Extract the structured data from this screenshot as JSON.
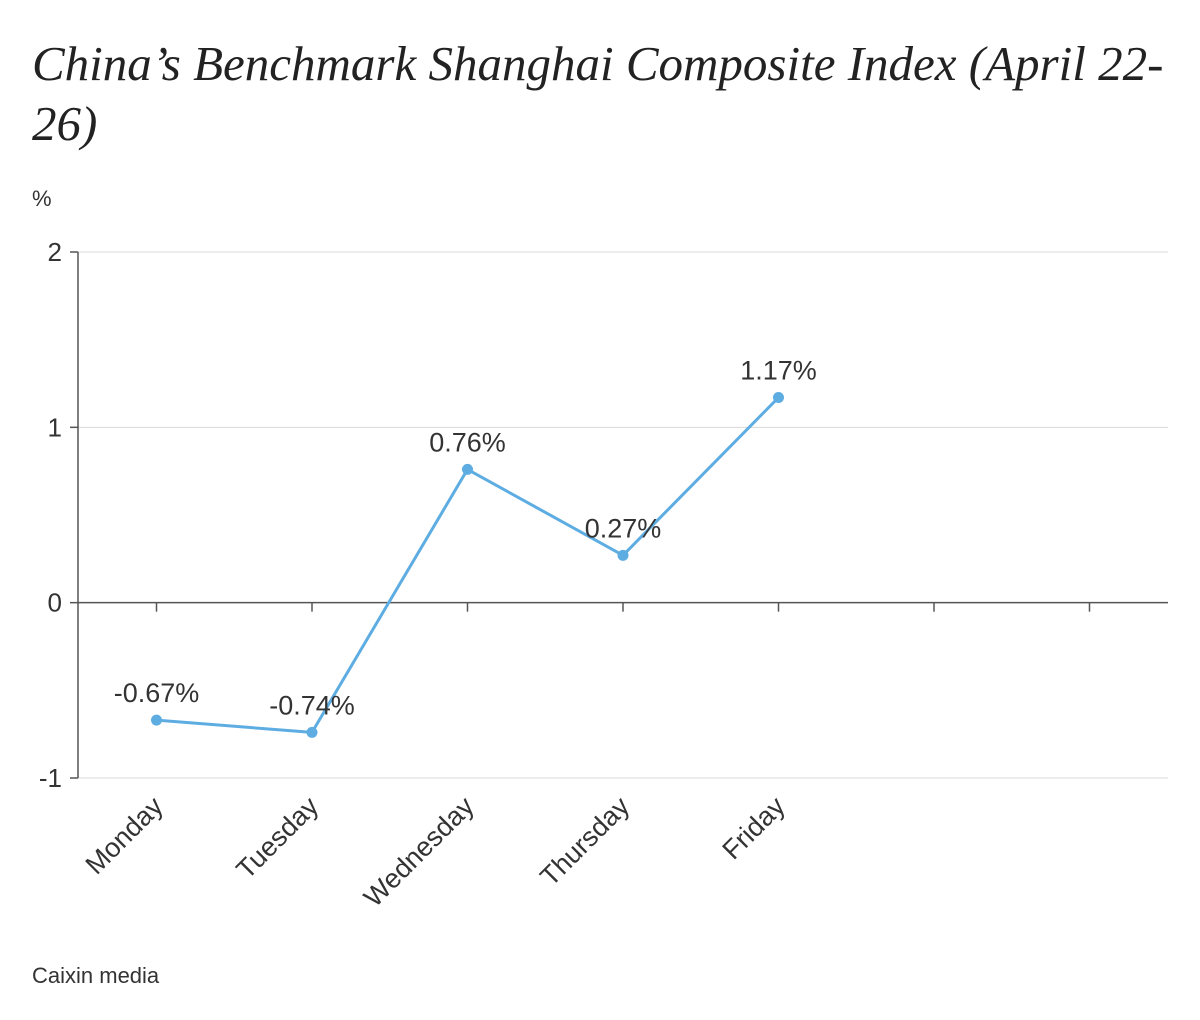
{
  "title": "China’s Benchmark Shanghai Composite Index (April 22-26)",
  "unit_label": "%",
  "source": "Caixin media",
  "colors": {
    "series": "#5dade2",
    "grid": "#d8d8d8",
    "axis": "#555555",
    "text": "#333333"
  },
  "chart_data": {
    "type": "line",
    "title": "China’s Benchmark Shanghai Composite Index (April 22-26)",
    "ylabel": "%",
    "xlabel": "",
    "ylim": [
      -1,
      2
    ],
    "yticks": [
      2,
      1,
      0,
      -1
    ],
    "categories": [
      "Monday",
      "Tuesday",
      "Wednesday",
      "Thursday",
      "Friday"
    ],
    "series": [
      {
        "values": [
          -0.67,
          -0.74,
          0.76,
          0.27,
          1.17
        ],
        "labels": [
          "-0.67%",
          "-0.74%",
          "0.76%",
          "0.27%",
          "1.17%"
        ]
      }
    ],
    "grid": true,
    "legend": "none"
  }
}
